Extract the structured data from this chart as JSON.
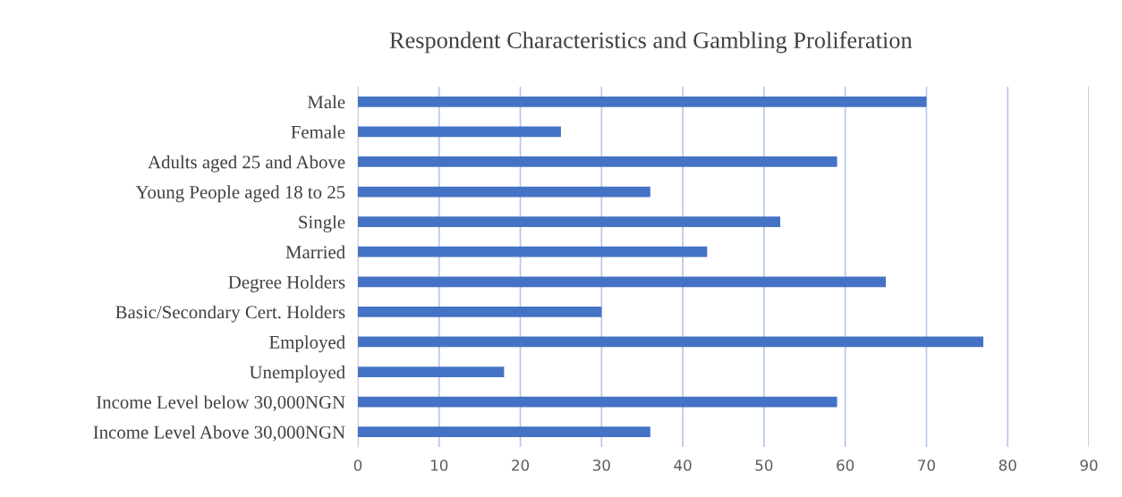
{
  "chart_data": {
    "type": "bar",
    "orientation": "horizontal",
    "title": "Respondent Characteristics and Gambling Proliferation",
    "categories": [
      "Male",
      "Female",
      "Adults aged 25 and Above",
      "Young People aged 18 to 25",
      "Single",
      "Married",
      "Degree Holders",
      "Basic/Secondary Cert. Holders",
      "Employed",
      "Unemployed",
      "Income Level below 30,000NGN",
      "Income Level Above 30,000NGN"
    ],
    "values": [
      70,
      25,
      59,
      36,
      52,
      43,
      65,
      30,
      77,
      18,
      59,
      36
    ],
    "color": "#4472c4",
    "xlim": [
      0,
      90
    ],
    "xticks": [
      0,
      10,
      20,
      30,
      40,
      50,
      60,
      70,
      80,
      90
    ],
    "grid": "x"
  }
}
